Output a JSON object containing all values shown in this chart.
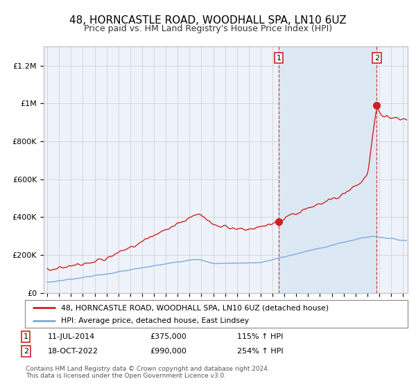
{
  "title": "48, HORNCASTLE ROAD, WOODHALL SPA, LN10 6UZ",
  "subtitle": "Price paid vs. HM Land Registry's House Price Index (HPI)",
  "red_label": "48, HORNCASTLE ROAD, WOODHALL SPA, LN10 6UZ (detached house)",
  "blue_label": "HPI: Average price, detached house, East Lindsey",
  "annotation1_date": "11-JUL-2014",
  "annotation1_price": "£375,000",
  "annotation1_hpi": "115% ↑ HPI",
  "annotation2_date": "18-OCT-2022",
  "annotation2_price": "£990,000",
  "annotation2_hpi": "254% ↑ HPI",
  "footer": "Contains HM Land Registry data © Crown copyright and database right 2024.\nThis data is licensed under the Open Government Licence v3.0.",
  "ylim": [
    0,
    1300000
  ],
  "yticks": [
    0,
    200000,
    400000,
    600000,
    800000,
    1000000,
    1200000
  ],
  "ytick_labels": [
    "£0",
    "£200K",
    "£400K",
    "£600K",
    "£800K",
    "£1M",
    "£1.2M"
  ],
  "background_color": "#ffffff",
  "plot_bg_color": "#eef2fa",
  "grid_color": "#cccccc",
  "red_color": "#cc2222",
  "blue_color": "#7aaadd",
  "shade_color": "#dde8f5",
  "marker1_x": 2014.53,
  "marker1_y": 375000,
  "marker2_x": 2022.79,
  "marker2_y": 990000,
  "vline1_x": 2014.53,
  "vline2_x": 2022.79,
  "xmin": 1995.0,
  "xmax": 2025.3
}
